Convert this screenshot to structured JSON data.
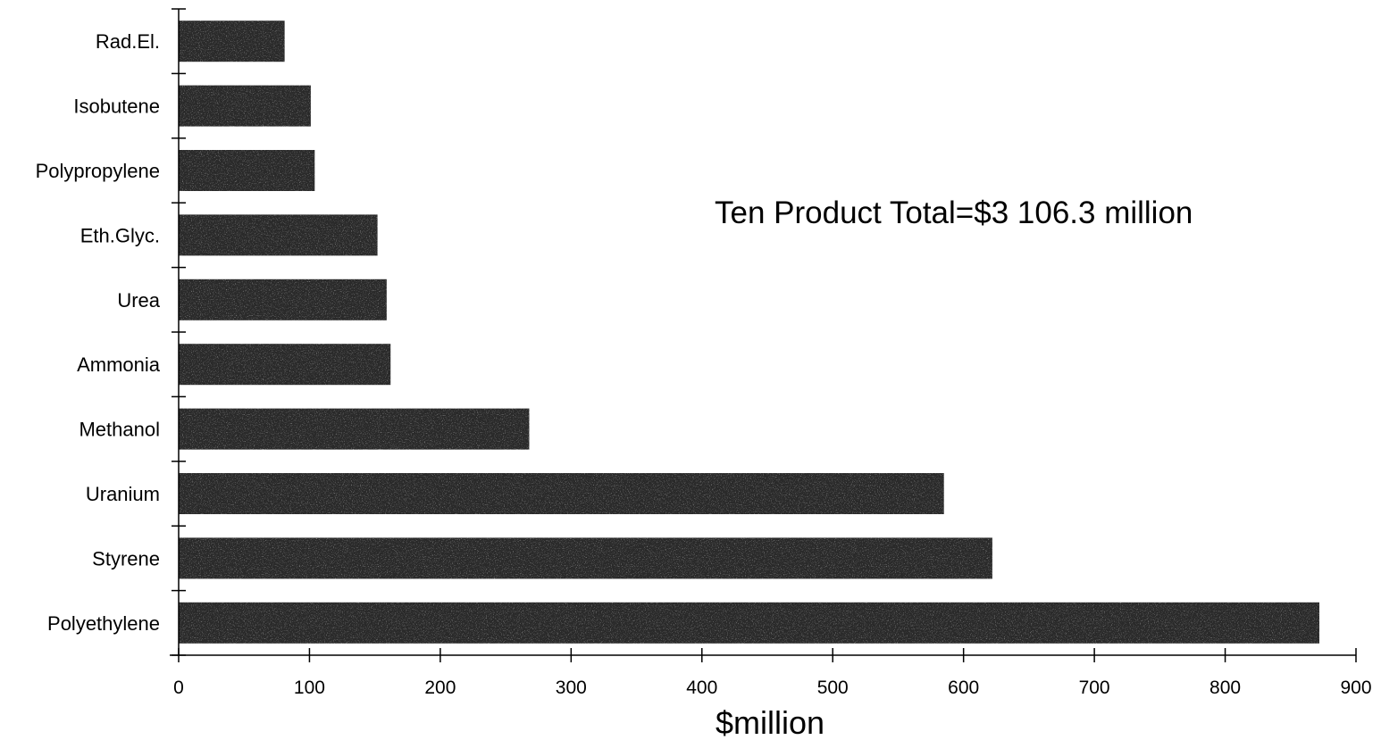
{
  "chart_data": {
    "type": "bar",
    "orientation": "horizontal",
    "categories": [
      "Rad.El.",
      "Isobutene",
      "Polypropylene",
      "Eth.Glyc.",
      "Urea",
      "Ammonia",
      "Methanol",
      "Uranium",
      "Styrene",
      "Polyethylene"
    ],
    "values": [
      81,
      101,
      104,
      152,
      159,
      162,
      268,
      585,
      622,
      872
    ],
    "title": "",
    "xlabel": "$million",
    "ylabel": "",
    "xlim": [
      0,
      900
    ],
    "xticks": [
      "0",
      "100",
      "200",
      "300",
      "400",
      "500",
      "600",
      "700",
      "800",
      "900"
    ],
    "annotation": "Ten Product Total=$3 106.3 million",
    "grid": false,
    "legend": "none",
    "bar_color": "#2a2a2a"
  }
}
